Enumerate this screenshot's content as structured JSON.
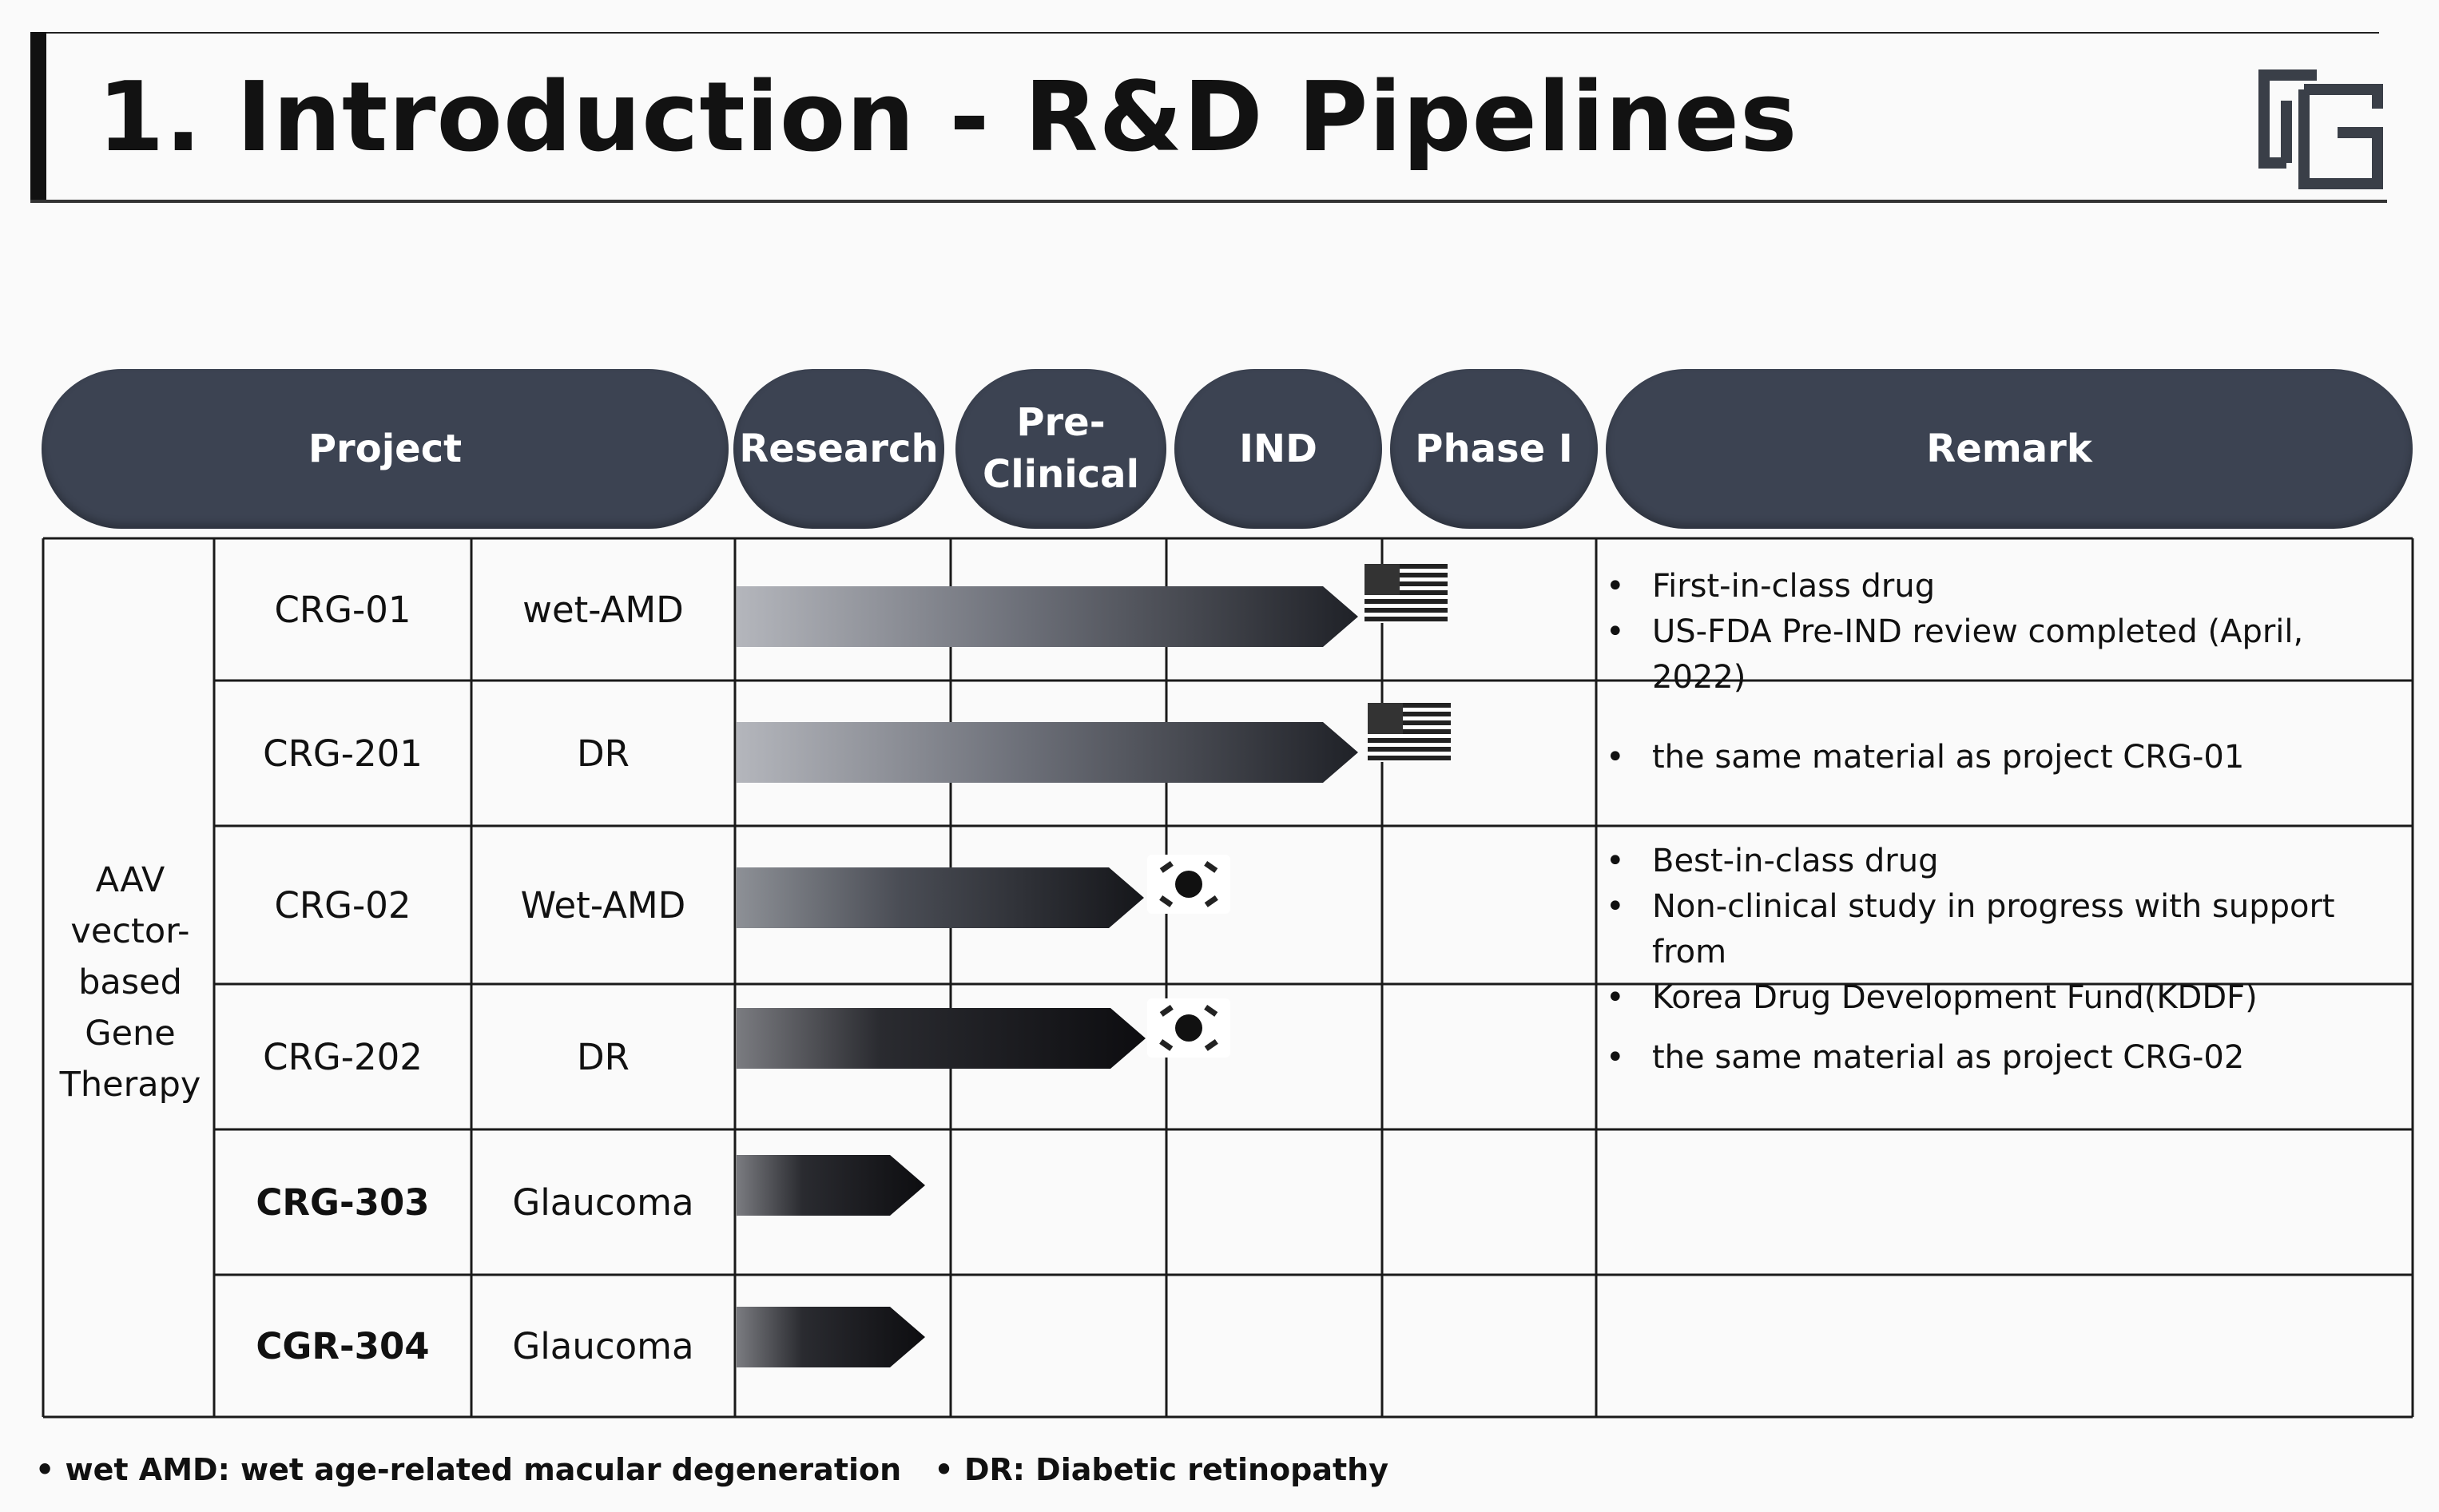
{
  "title": "1. Introduction - R&D Pipelines",
  "logo_text": "CG",
  "header": {
    "project": "Project",
    "research": "Research",
    "preclinical_line1": "Pre-",
    "preclinical_line2": "Clinical",
    "ind": "IND",
    "phase1": "Phase I",
    "remark": "Remark"
  },
  "category": {
    "line1": "AAV",
    "line2": "vector-",
    "line3": "based",
    "line4": "Gene",
    "line5": "Therapy"
  },
  "rows": [
    {
      "code": "CRG-01",
      "indication": "wet-AMD",
      "stage_progress": "IND",
      "flag": "USA",
      "remarks": [
        "First-in-class drug",
        "US-FDA Pre-IND review completed (April, 2022)"
      ]
    },
    {
      "code": "CRG-201",
      "indication": "DR",
      "stage_progress": "IND",
      "flag": "USA",
      "remarks": [
        "the same material as project CRG-01"
      ]
    },
    {
      "code": "CRG-02",
      "indication": "Wet-AMD",
      "stage_progress": "Pre-Clinical",
      "flag": "Korea",
      "remarks": [
        "Best-in-class drug",
        "Non-clinical study in progress with support from",
        "Korea Drug Development Fund(KDDF)"
      ]
    },
    {
      "code": "CRG-202",
      "indication": "DR",
      "stage_progress": "Pre-Clinical",
      "flag": "Korea",
      "remarks": [
        "the same material as project CRG-02"
      ]
    },
    {
      "code": "CRG-303",
      "indication": "Glaucoma",
      "stage_progress": "Research",
      "flag": "",
      "remarks": []
    },
    {
      "code": "CGR-304",
      "indication": "Glaucoma",
      "stage_progress": "Research",
      "flag": "",
      "remarks": []
    }
  ],
  "footnotes": [
    "wet AMD: wet age-related macular degeneration",
    "DR: Diabetic retinopathy"
  ],
  "colors": {
    "header_fill": "#3c4352",
    "header_text": "#ffffff",
    "grid_line": "#1a1a1a"
  },
  "icons": {
    "usa_flag": "usa-flag-icon",
    "korea_flag": "korea-flag-icon",
    "logo": "company-logo-icon"
  }
}
